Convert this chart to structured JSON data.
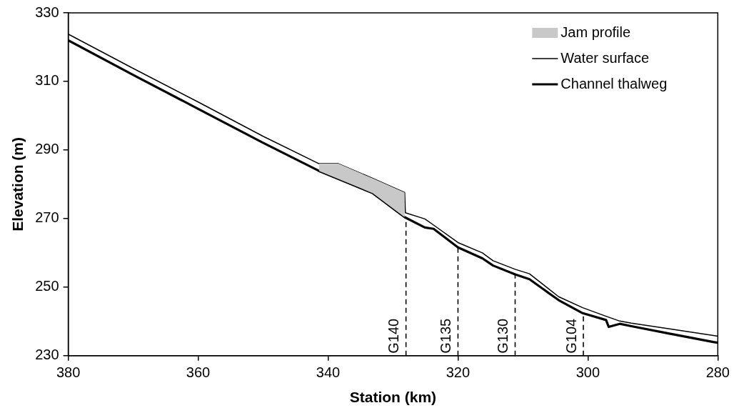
{
  "chart_data": {
    "type": "line",
    "xlabel": "Station (km)",
    "ylabel": "Elevation (m)",
    "xlim": [
      380,
      280
    ],
    "xticks": [
      380,
      360,
      340,
      320,
      300,
      280
    ],
    "ylim": [
      230,
      330
    ],
    "yticks": [
      230,
      250,
      270,
      290,
      310,
      330
    ],
    "grid": false,
    "legend": "top right",
    "marker": "none",
    "line_style": "solid",
    "series": [
      {
        "name": "Jam profile",
        "type": "area",
        "color": "#c8c8c8",
        "x": [
          341.4,
          338.4,
          333.1,
          328.2
        ],
        "values": [
          286.0,
          286.0,
          281.7,
          277.6
        ]
      },
      {
        "name": "Water surface",
        "color": "#000000",
        "x": [
          380,
          370,
          360,
          350,
          341.4,
          338.4,
          333.1,
          328.2,
          328.1,
          325.1,
          323.75,
          320,
          316.25,
          314.6,
          311.2,
          309,
          304.5,
          300.8,
          297.2,
          295.1,
          293.3,
          287.6,
          280.7,
          280
        ],
        "values": [
          323.8,
          313.8,
          304,
          294.0,
          286.0,
          286.0,
          281.7,
          277.6,
          271.7,
          269.9,
          268.1,
          263.0,
          260.0,
          257.7,
          255.2,
          253.9,
          247.2,
          244.0,
          241.5,
          240.1,
          239.5,
          237.9,
          235.9,
          235.7
        ]
      },
      {
        "name": "Channel thalweg",
        "color": "#000000",
        "x": [
          380,
          370,
          360,
          350,
          341.4,
          333.1,
          328.2,
          325.1,
          323.75,
          320,
          316.25,
          314.6,
          311.2,
          309,
          304.5,
          300.8,
          297.2,
          296.8,
          295.1,
          293.3,
          287.6,
          280.7,
          280
        ],
        "values": [
          322.0,
          311.9,
          302,
          292.1,
          283.9,
          277.4,
          270.4,
          267.4,
          267.0,
          261.6,
          258.4,
          256.3,
          253.7,
          252.3,
          246.2,
          242.4,
          240.4,
          238.4,
          239.3,
          238.6,
          236.5,
          234.0,
          233.8
        ]
      }
    ],
    "ref_lines": [
      {
        "axis": "x",
        "value": 328,
        "label": "G140",
        "color": "#000000",
        "line_style": "dashed"
      },
      {
        "axis": "x",
        "value": 320,
        "label": "G135",
        "color": "#000000",
        "line_style": "dashed"
      },
      {
        "axis": "x",
        "value": 311.2,
        "label": "G130",
        "color": "#000000",
        "line_style": "dashed"
      },
      {
        "axis": "x",
        "value": 300.7,
        "label": "G104",
        "color": "#000000",
        "line_style": "dashed"
      }
    ]
  }
}
